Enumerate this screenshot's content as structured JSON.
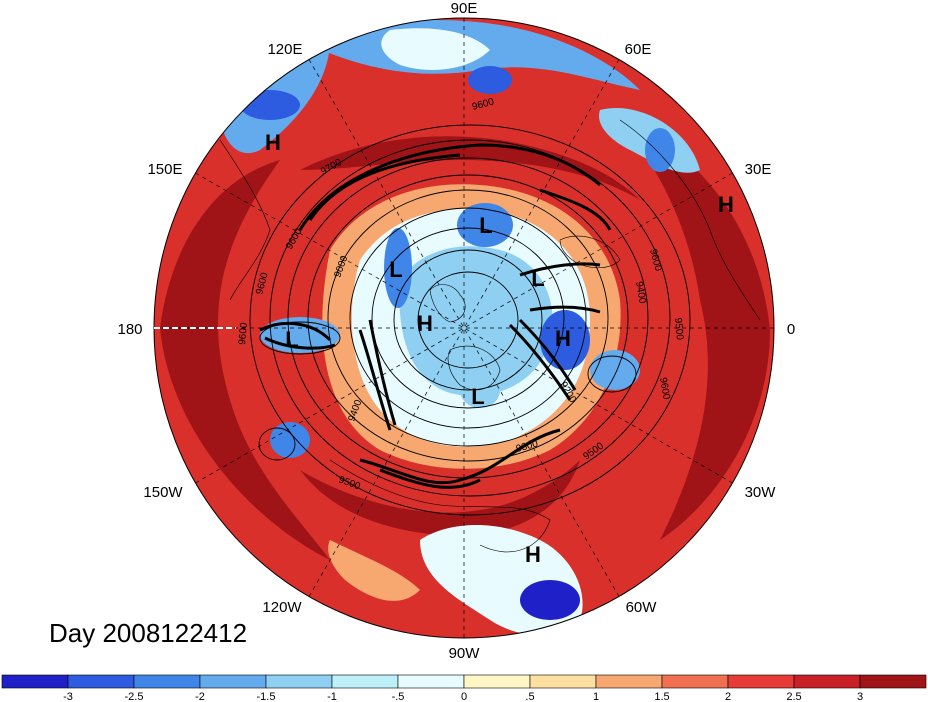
{
  "date_label": "Day 2008122412",
  "lon_labels": [
    "90E",
    "60E",
    "30E",
    "0",
    "30W",
    "60W",
    "90W",
    "120W",
    "150W",
    "180",
    "150E",
    "120E"
  ],
  "pressure_systems": [
    "H",
    "H",
    "L",
    "L",
    "L",
    "H",
    "L",
    "H",
    "L",
    "H"
  ],
  "contour_labels": [
    "9600",
    "9700",
    "9600",
    "9600",
    "9600",
    "9000",
    "9600",
    "9500",
    "9400",
    "9500",
    "9500",
    "9400",
    "9600",
    "9200",
    "9300"
  ],
  "colorbar": {
    "ticks": [
      "-3",
      "-2.5",
      "-2",
      "-1.5",
      "-1",
      "-.5",
      "0",
      ".5",
      "1",
      "1.5",
      "2",
      "2.5",
      "3"
    ],
    "colors": [
      "#1f20c8",
      "#2d5ce0",
      "#3f86e8",
      "#64abee",
      "#8fd0f2",
      "#bdf0f8",
      "#e8fbff",
      "#fff6c6",
      "#fde0a0",
      "#f6a870",
      "#f07050",
      "#e83a36",
      "#c82026",
      "#a01418"
    ]
  },
  "field_colors": {
    "strong_positive": "#a01418",
    "positive": "#c82026",
    "moderate_positive": "#e83a36",
    "weak_positive": "#f6a870",
    "neutral": "#e8fbff",
    "weak_negative": "#8fd0f2",
    "moderate_negative": "#3f86e8",
    "strong_negative": "#1f20c8"
  }
}
